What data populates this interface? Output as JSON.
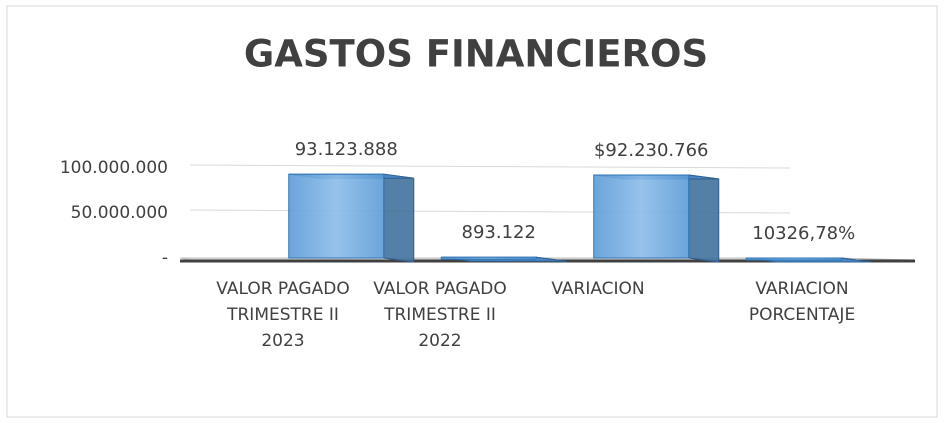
{
  "chart_data": {
    "type": "bar3d",
    "title": "GASTOS FINANCIEROS",
    "categories": [
      "VALOR PAGADO TRIMESTRE II 2023",
      "VALOR PAGADO TRIMESTRE II 2022",
      "VARIACION",
      "VARIACION PORCENTAJE"
    ],
    "values": [
      93123888,
      893122,
      92230766,
      10326.78
    ],
    "value_labels": [
      "93.123.888",
      "893.122",
      "$92.230.766",
      "10326,78%"
    ],
    "color": "#5b9bd5",
    "ylim": [
      0,
      100000000
    ],
    "yticks": [
      {
        "value": 0,
        "label": "-"
      },
      {
        "value": 50000000,
        "label": "50.000.000"
      },
      {
        "value": 100000000,
        "label": "100.000.000"
      }
    ],
    "grid": true
  }
}
